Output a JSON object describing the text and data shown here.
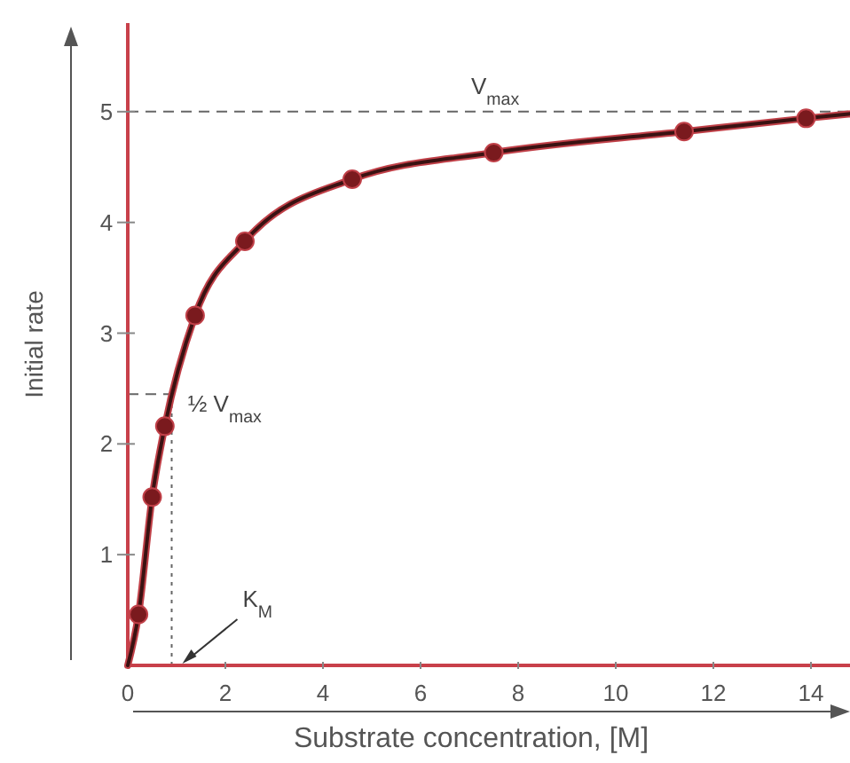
{
  "chart_data": {
    "type": "scatter",
    "xlabel": "Substrate concentration, [M]",
    "ylabel": "Initial rate",
    "xlim": [
      0,
      14.8
    ],
    "ylim": [
      0,
      5.8
    ],
    "xticks": [
      0,
      2,
      4,
      6,
      8,
      10,
      12,
      14
    ],
    "yticks": [
      1,
      2,
      3,
      4,
      5
    ],
    "grid": false,
    "marker": "circle",
    "annotations": [
      "K$_{M}$"
    ],
    "series": [
      {
        "type": "line",
        "marker": "none",
        "color": "#3a1212",
        "x": [
          0,
          0.22,
          0.5,
          0.76,
          1.38,
          2.4,
          4.6,
          7.5,
          11.4,
          13.9,
          14.8
        ],
        "values": [
          0,
          0.46,
          1.52,
          2.16,
          3.16,
          3.83,
          4.39,
          4.63,
          4.82,
          4.94,
          4.98
        ]
      },
      {
        "color": "#7a1a1e",
        "x": [
          0.22,
          0.5,
          0.76,
          1.38,
          2.4,
          4.6,
          7.5,
          11.4,
          13.9
        ],
        "values": [
          0.46,
          1.52,
          2.16,
          3.16,
          3.83,
          4.39,
          4.63,
          4.82,
          4.94
        ]
      }
    ],
    "ref_lines": [
      {
        "axis": "y",
        "value": 5,
        "label": "V$_{max}$",
        "line_style": "dashed",
        "color": "#666666"
      },
      {
        "axis": "y",
        "value": 2.45,
        "label": "½ V$_{max}$",
        "line_style": "dashed",
        "color": "#666666"
      },
      {
        "axis": "x",
        "value": 0.9,
        "line_style": "dotted",
        "color": "#666666"
      }
    ]
  }
}
